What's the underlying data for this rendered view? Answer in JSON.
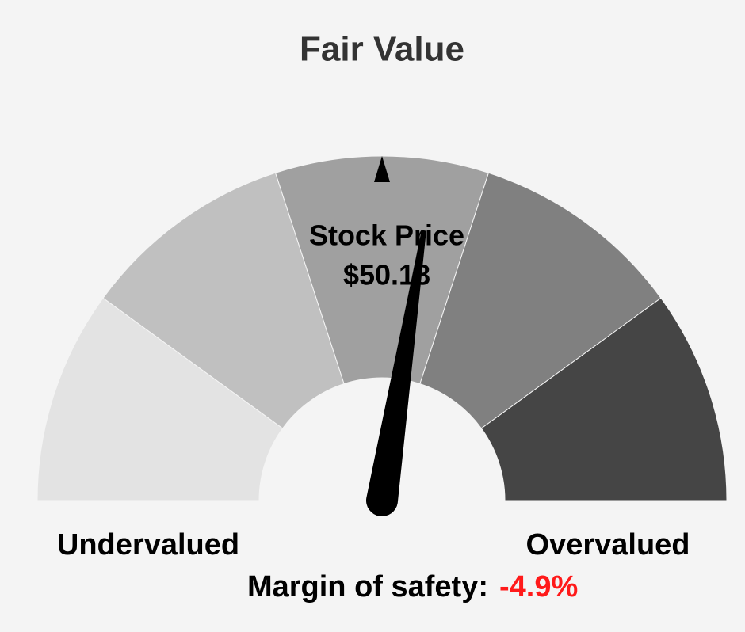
{
  "chart_data": {
    "type": "gauge",
    "title": "Fair Value",
    "center_label": "Stock Price",
    "price": "$50.18",
    "left_label": "Undervalued",
    "right_label": "Overvalued",
    "value_caption": "Margin of safety:",
    "value": -4.9,
    "value_label": "-4.9%",
    "value_color": "#ff1a1a",
    "range": [
      50,
      -50
    ],
    "band_colors": [
      "#e3e3e3",
      "#c0c0c0",
      "#a0a0a0",
      "#808080",
      "#454545"
    ],
    "needle_color": "#000000"
  }
}
